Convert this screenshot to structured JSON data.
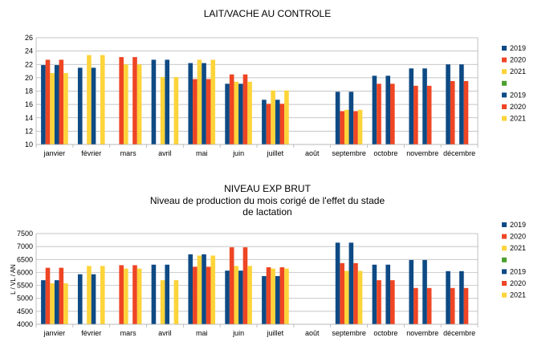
{
  "chart_data": [
    {
      "type": "bar",
      "title": "LAIT/VACHE AU CONTROLE",
      "subtitle": [],
      "ylabel": "",
      "ylim": [
        10,
        26
      ],
      "yticks": [
        10,
        12,
        14,
        16,
        18,
        20,
        22,
        24,
        26
      ],
      "categories": [
        "janvier",
        "février",
        "mars",
        "avril",
        "mai",
        "juin",
        "juillet",
        "août",
        "septembre",
        "octobre",
        "novembre",
        "décembre"
      ],
      "series": [
        {
          "name": "2019",
          "color": "#0e4a84",
          "values": [
            21.9,
            21.5,
            null,
            22.7,
            22.2,
            19.1,
            16.7,
            null,
            17.9,
            20.3,
            21.4,
            22.0
          ]
        },
        {
          "name": "2020",
          "color": "#ee4524",
          "values": [
            22.7,
            null,
            23.1,
            null,
            19.8,
            20.5,
            16.1,
            null,
            15.0,
            19.1,
            18.8,
            19.5
          ]
        },
        {
          "name": "2021",
          "color": "#fdd43a",
          "values": [
            20.7,
            23.4,
            22.0,
            20.1,
            22.7,
            19.4,
            18.1,
            null,
            15.2,
            null,
            null,
            null
          ]
        },
        {
          "name": "2019",
          "color": "#0e4a84",
          "values": [
            21.9,
            21.5,
            null,
            22.7,
            22.2,
            19.1,
            16.7,
            null,
            17.9,
            20.3,
            21.4,
            22.0
          ]
        },
        {
          "name": "2020",
          "color": "#ee4524",
          "values": [
            22.7,
            null,
            23.1,
            null,
            19.8,
            20.5,
            16.1,
            null,
            15.0,
            19.1,
            18.8,
            19.5
          ]
        },
        {
          "name": "2021",
          "color": "#fdd43a",
          "values": [
            20.7,
            23.4,
            22.0,
            20.1,
            22.7,
            19.4,
            18.1,
            null,
            15.2,
            null,
            null,
            null
          ]
        }
      ],
      "legend": [
        {
          "label": "2019",
          "color": "#0e4a84"
        },
        {
          "label": "2020",
          "color": "#ee4524"
        },
        {
          "label": "2021",
          "color": "#fdd43a"
        },
        {
          "label": "",
          "color": "#4aa02c"
        },
        {
          "label": "2019",
          "color": "#0e4a84"
        },
        {
          "label": "2020",
          "color": "#ee4524"
        },
        {
          "label": "2021",
          "color": "#fdd43a"
        }
      ]
    },
    {
      "type": "bar",
      "title": "NIVEAU EXP BRUT",
      "subtitle": [
        "Niveau de production du mois corigé de l'effet du stade",
        "de lactation"
      ],
      "ylabel": "L / VL / AN",
      "ylim": [
        4000,
        7500
      ],
      "yticks": [
        4000,
        4500,
        5000,
        5500,
        6000,
        6500,
        7000,
        7500
      ],
      "categories": [
        "janvier",
        "février",
        "mars",
        "avril",
        "mai",
        "juin",
        "juillet",
        "août",
        "septembre",
        "octobre",
        "novembre",
        "décembre"
      ],
      "series": [
        {
          "name": "2019",
          "color": "#0e4a84",
          "values": [
            5700,
            5930,
            null,
            6300,
            6700,
            6070,
            5860,
            null,
            7150,
            6300,
            6480,
            6050
          ]
        },
        {
          "name": "2020",
          "color": "#ee4524",
          "values": [
            6180,
            null,
            6280,
            null,
            6220,
            6970,
            6200,
            null,
            6360,
            5700,
            5400,
            5400
          ]
        },
        {
          "name": "2021",
          "color": "#fdd43a",
          "values": [
            5580,
            6250,
            6150,
            5700,
            6650,
            6250,
            6150,
            null,
            6060,
            null,
            null,
            null
          ]
        },
        {
          "name": "2019",
          "color": "#0e4a84",
          "values": [
            5700,
            5930,
            null,
            6300,
            6700,
            6070,
            5860,
            null,
            7150,
            6300,
            6480,
            6050
          ]
        },
        {
          "name": "2020",
          "color": "#ee4524",
          "values": [
            6180,
            null,
            6280,
            null,
            6220,
            6970,
            6200,
            null,
            6360,
            5700,
            5400,
            5400
          ]
        },
        {
          "name": "2021",
          "color": "#fdd43a",
          "values": [
            5580,
            6250,
            6150,
            5700,
            6650,
            6250,
            6150,
            null,
            6060,
            null,
            null,
            null
          ]
        }
      ],
      "legend": [
        {
          "label": "2019",
          "color": "#0e4a84"
        },
        {
          "label": "2020",
          "color": "#ee4524"
        },
        {
          "label": "2021",
          "color": "#fdd43a"
        },
        {
          "label": "",
          "color": "#4aa02c"
        },
        {
          "label": "2019",
          "color": "#0e4a84"
        },
        {
          "label": "2020",
          "color": "#ee4524"
        },
        {
          "label": "2021",
          "color": "#fdd43a"
        }
      ]
    }
  ]
}
